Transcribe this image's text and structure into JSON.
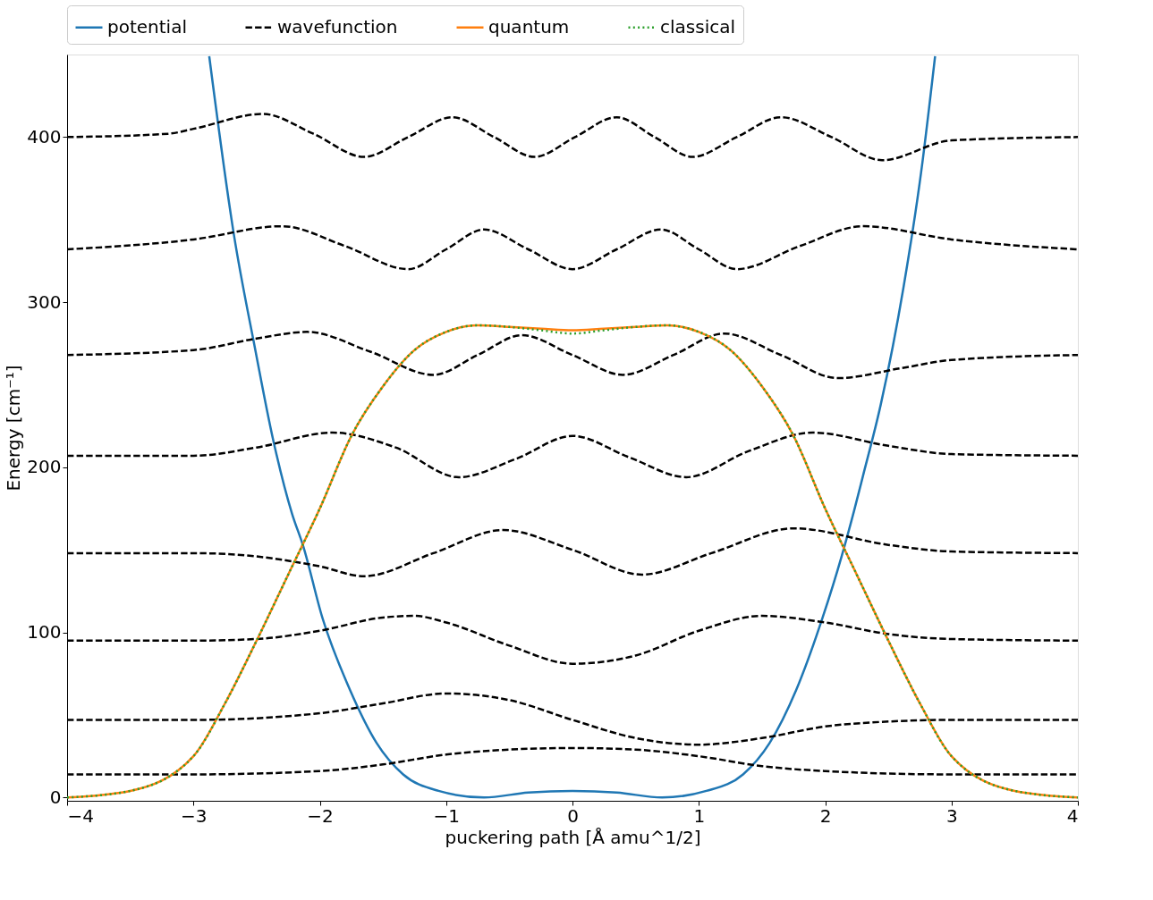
{
  "chart_data": {
    "type": "line",
    "xlabel": "puckering path [Å amu^1/2]",
    "ylabel": "Energy [cm⁻¹]",
    "xlim": [
      -4,
      4
    ],
    "ylim": [
      -2,
      450
    ],
    "xticks": [
      {
        "value": -4,
        "label": "−4"
      },
      {
        "value": -3,
        "label": "−3"
      },
      {
        "value": -2,
        "label": "−2"
      },
      {
        "value": -1,
        "label": "−1"
      },
      0,
      1,
      2,
      3,
      4
    ],
    "yticks": [
      0,
      100,
      200,
      300,
      400
    ],
    "grid": false,
    "legend": "top",
    "marker": "none",
    "series": [
      {
        "name": "potential",
        "color": "#1f77b4",
        "line_style": "solid",
        "x": [
          -2.875,
          -2.68,
          -2.51,
          -2.37,
          -2.22,
          -2.13,
          -1.98,
          -1.76,
          -1.55,
          -1.34,
          -1.06,
          -0.7,
          -0.35,
          0,
          0.35,
          0.71,
          1.06,
          1.35,
          1.56,
          1.77,
          1.98,
          2.13,
          2.23,
          2.3,
          2.44,
          2.62,
          2.76,
          2.87
        ],
        "values": [
          449,
          341,
          271,
          217,
          172,
          152,
          109,
          65,
          33,
          14,
          4,
          0,
          3,
          4,
          3,
          0,
          4,
          14,
          33,
          65,
          109,
          146,
          174,
          195,
          238,
          309,
          379,
          449
        ]
      },
      {
        "name": "wavefunction",
        "color": "#000000",
        "line_style": "dashed",
        "x": [
          -4,
          -3,
          -2,
          -1.5,
          -1,
          -0.5,
          0,
          0.5,
          1,
          1.5,
          2,
          3,
          4
        ],
        "values": [
          14,
          14,
          16,
          20,
          26,
          29,
          30,
          29,
          25,
          19,
          16,
          14,
          14
        ]
      },
      {
        "color": "#000000",
        "line_style": "dashed",
        "x": [
          -4,
          -3,
          -2,
          -1.5,
          -1,
          -0.5,
          0,
          0.5,
          1,
          1.5,
          2,
          2.5,
          3,
          4
        ],
        "values": [
          47,
          47,
          51,
          57,
          63,
          59,
          47,
          36,
          32,
          36,
          43,
          46,
          47,
          47
        ]
      },
      {
        "color": "#000000",
        "line_style": "dashed",
        "x": [
          -4,
          -3,
          -2.5,
          -2,
          -1.5,
          -1.25,
          -1,
          -0.5,
          0,
          0.5,
          1,
          1.5,
          2,
          2.5,
          3,
          4
        ],
        "values": [
          95,
          95,
          96,
          101,
          109,
          110,
          106,
          92,
          81,
          86,
          101,
          110,
          106,
          99,
          96,
          95
        ]
      },
      {
        "color": "#000000",
        "line_style": "dashed",
        "x": [
          -4,
          -3,
          -2.5,
          -2,
          -1.65,
          -1.1,
          -0.55,
          0,
          0.55,
          1.1,
          1.75,
          2.5,
          3,
          4
        ],
        "values": [
          148,
          148,
          146,
          140,
          134,
          148,
          162,
          150,
          135,
          148,
          163,
          153,
          149,
          148
        ]
      },
      {
        "color": "#000000",
        "line_style": "dashed",
        "x": [
          -4,
          -3,
          -2.5,
          -1.9,
          -1.4,
          -0.9,
          -0.45,
          0,
          0.45,
          0.9,
          1.4,
          1.9,
          2.5,
          3,
          4
        ],
        "values": [
          207,
          207,
          212,
          221,
          212,
          194,
          205,
          219,
          206,
          194,
          210,
          221,
          213,
          208,
          207
        ]
      },
      {
        "color": "#000000",
        "line_style": "dashed",
        "x": [
          -4,
          -3,
          -2.5,
          -2.1,
          -1.6,
          -1.1,
          -0.75,
          -0.4,
          0,
          0.4,
          0.8,
          1.2,
          1.65,
          2.1,
          2.6,
          3,
          4
        ],
        "values": [
          268,
          271,
          278,
          282,
          270,
          256,
          268,
          280,
          268,
          256,
          268,
          281,
          268,
          254,
          260,
          265,
          268
        ]
      },
      {
        "color": "#000000",
        "line_style": "dashed",
        "x": [
          -4,
          -3,
          -2.3,
          -1.8,
          -1.3,
          -1,
          -0.7,
          -0.35,
          0,
          0.35,
          0.7,
          1,
          1.3,
          1.8,
          2.3,
          3,
          4
        ],
        "values": [
          332,
          338,
          346,
          334,
          320,
          332,
          344,
          332,
          320,
          332,
          344,
          332,
          320,
          334,
          346,
          338,
          332
        ]
      },
      {
        "color": "#000000",
        "line_style": "dashed",
        "x": [
          -4,
          -3.2,
          -3,
          -2.45,
          -2.05,
          -1.65,
          -1.3,
          -0.95,
          -0.62,
          -0.3,
          0.02,
          0.35,
          0.65,
          0.95,
          1.3,
          1.65,
          2.05,
          2.45,
          3,
          4
        ],
        "values": [
          400,
          402,
          405,
          414,
          402,
          388,
          400,
          412,
          400,
          388,
          400,
          412,
          400,
          388,
          400,
          412,
          400,
          386,
          398,
          400
        ]
      },
      {
        "name": "quantum",
        "color": "#ff7f0e",
        "line_style": "solid",
        "x": [
          -4,
          -3.5,
          -3,
          -2.75,
          -2.5,
          -2.25,
          -2,
          -1.75,
          -1.5,
          -1.25,
          -1,
          -0.75,
          -0.5,
          -0.25,
          0,
          0.25,
          0.5,
          0.75,
          1,
          1.25,
          1.5,
          1.75,
          2,
          2.25,
          2.5,
          2.75,
          3,
          3.5,
          4
        ],
        "values": [
          0,
          4,
          25,
          57,
          95,
          135,
          175,
          219,
          249,
          271,
          282,
          286,
          285,
          284,
          283,
          284,
          285,
          286,
          282,
          271,
          249,
          219,
          175,
          135,
          95,
          57,
          25,
          4,
          0
        ]
      },
      {
        "name": "classical",
        "color": "#2ca02c",
        "line_style": "dotted",
        "x": [
          -4,
          -3.5,
          -3,
          -2.75,
          -2.5,
          -2.25,
          -2,
          -1.75,
          -1.5,
          -1.25,
          -1,
          -0.75,
          -0.5,
          -0.25,
          0,
          0.25,
          0.5,
          0.75,
          1,
          1.25,
          1.5,
          1.75,
          2,
          2.25,
          2.5,
          2.75,
          3,
          3.5,
          4
        ],
        "values": [
          0,
          4,
          25,
          57,
          95,
          135,
          175,
          219,
          249,
          271,
          282,
          286,
          285,
          283,
          281,
          283,
          285,
          286,
          282,
          271,
          249,
          219,
          175,
          135,
          95,
          57,
          25,
          4,
          0
        ]
      }
    ]
  }
}
